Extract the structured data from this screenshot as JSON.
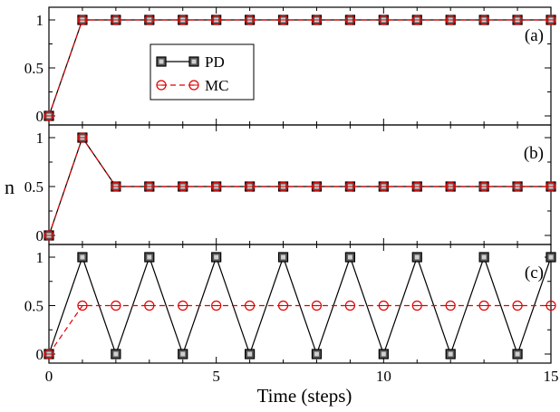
{
  "chart_data": [
    {
      "type": "line",
      "panel_label": "(a)",
      "x": [
        0,
        1,
        2,
        3,
        4,
        5,
        6,
        7,
        8,
        9,
        10,
        11,
        12,
        13,
        14,
        15
      ],
      "series": [
        {
          "name": "PD",
          "values": [
            0,
            1,
            1,
            1,
            1,
            1,
            1,
            1,
            1,
            1,
            1,
            1,
            1,
            1,
            1,
            1
          ],
          "color": "#000000",
          "marker": "square",
          "line": "solid"
        },
        {
          "name": "MC",
          "values": [
            0,
            1,
            1,
            1,
            1,
            1,
            1,
            1,
            1,
            1,
            1,
            1,
            1,
            1,
            1,
            1
          ],
          "color": "#e00000",
          "marker": "circle-open",
          "line": "dashed"
        }
      ],
      "xlim": [
        0,
        15
      ],
      "ylim": [
        0,
        1
      ],
      "yticks": [
        "0",
        "0.5",
        "1"
      ],
      "legend": {
        "position": "upper-left-inside",
        "entries": [
          "PD",
          "MC"
        ]
      },
      "grid": false
    },
    {
      "type": "line",
      "panel_label": "(b)",
      "ylabel": "n",
      "x": [
        0,
        1,
        2,
        3,
        4,
        5,
        6,
        7,
        8,
        9,
        10,
        11,
        12,
        13,
        14,
        15
      ],
      "series": [
        {
          "name": "PD",
          "values": [
            0,
            1,
            0.5,
            0.5,
            0.5,
            0.5,
            0.5,
            0.5,
            0.5,
            0.5,
            0.5,
            0.5,
            0.5,
            0.5,
            0.5,
            0.5
          ],
          "color": "#000000",
          "marker": "square",
          "line": "solid"
        },
        {
          "name": "MC",
          "values": [
            0,
            1,
            0.5,
            0.5,
            0.5,
            0.5,
            0.5,
            0.5,
            0.5,
            0.5,
            0.5,
            0.5,
            0.5,
            0.5,
            0.5,
            0.5
          ],
          "color": "#e00000",
          "marker": "circle-open",
          "line": "dashed"
        }
      ],
      "xlim": [
        0,
        15
      ],
      "ylim": [
        0,
        1
      ],
      "yticks": [
        "0",
        "0.5",
        "1"
      ],
      "grid": false
    },
    {
      "type": "line",
      "panel_label": "(c)",
      "xlabel": "Time (steps)",
      "x": [
        0,
        1,
        2,
        3,
        4,
        5,
        6,
        7,
        8,
        9,
        10,
        11,
        12,
        13,
        14,
        15
      ],
      "series": [
        {
          "name": "PD",
          "values": [
            0,
            1,
            0,
            1,
            0,
            1,
            0,
            1,
            0,
            1,
            0,
            1,
            0,
            1,
            0,
            1
          ],
          "color": "#000000",
          "marker": "square",
          "line": "solid"
        },
        {
          "name": "MC",
          "values": [
            0,
            0.5,
            0.5,
            0.5,
            0.5,
            0.5,
            0.5,
            0.5,
            0.5,
            0.5,
            0.5,
            0.5,
            0.5,
            0.5,
            0.5,
            0.5
          ],
          "color": "#e00000",
          "marker": "circle-open",
          "line": "dashed"
        }
      ],
      "xlim": [
        0,
        15
      ],
      "ylim": [
        0,
        1
      ],
      "xticks": [
        "0",
        "5",
        "10",
        "15"
      ],
      "yticks": [
        "0",
        "0.5",
        "1"
      ],
      "grid": false
    }
  ]
}
